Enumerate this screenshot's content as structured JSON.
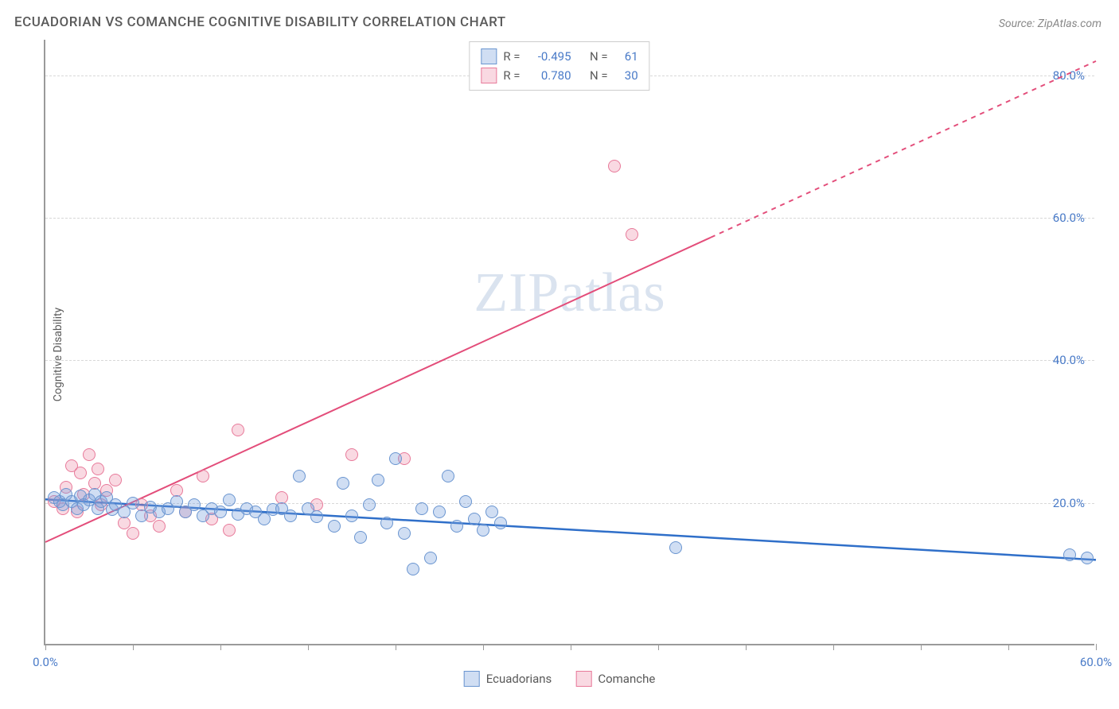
{
  "title": "ECUADORIAN VS COMANCHE COGNITIVE DISABILITY CORRELATION CHART",
  "source": "Source: ZipAtlas.com",
  "y_axis_label": "Cognitive Disability",
  "watermark_a": "ZIP",
  "watermark_b": "atlas",
  "chart": {
    "type": "scatter",
    "xlim": [
      0,
      60
    ],
    "ylim": [
      0,
      85
    ],
    "ytick_values": [
      20,
      40,
      60,
      80
    ],
    "ytick_labels": [
      "20.0%",
      "40.0%",
      "60.0%",
      "80.0%"
    ],
    "xtick_values": [
      0,
      5,
      10,
      15,
      20,
      25,
      30,
      35,
      40,
      45,
      50,
      55,
      60
    ],
    "xtick_labels": {
      "0": "0.0%",
      "60": "60.0%"
    },
    "grid_color": "#d8d8d8",
    "axis_color": "#9a9a9a",
    "background_color": "#ffffff",
    "marker_radius": 8,
    "marker_stroke_width": 1.5,
    "series": [
      {
        "name": "Ecuadorians",
        "fill": "rgba(120,160,220,0.35)",
        "stroke": "#6a95d0",
        "r_value": "-0.495",
        "n_value": "61",
        "trend": {
          "x1": 0,
          "y1": 20.5,
          "x2": 60,
          "y2": 12.0,
          "color": "#2f6fc9",
          "width": 2.5,
          "dash": ""
        },
        "points": [
          [
            0.5,
            20.5
          ],
          [
            0.8,
            20.0
          ],
          [
            1.0,
            19.5
          ],
          [
            1.2,
            21.0
          ],
          [
            1.5,
            20.0
          ],
          [
            1.8,
            19.0
          ],
          [
            2.0,
            20.8
          ],
          [
            2.2,
            19.5
          ],
          [
            2.5,
            20.2
          ],
          [
            2.8,
            21.0
          ],
          [
            3.0,
            19.0
          ],
          [
            3.2,
            20.0
          ],
          [
            3.5,
            20.5
          ],
          [
            3.8,
            18.8
          ],
          [
            4.0,
            19.5
          ],
          [
            4.5,
            18.5
          ],
          [
            5.0,
            19.8
          ],
          [
            5.5,
            18.0
          ],
          [
            6.0,
            19.2
          ],
          [
            6.5,
            18.5
          ],
          [
            7.0,
            19.0
          ],
          [
            7.5,
            20.0
          ],
          [
            8.0,
            18.5
          ],
          [
            8.5,
            19.5
          ],
          [
            9.0,
            18.0
          ],
          [
            9.5,
            19.0
          ],
          [
            10.0,
            18.5
          ],
          [
            10.5,
            20.2
          ],
          [
            11.0,
            18.2
          ],
          [
            11.5,
            19.0
          ],
          [
            12.0,
            18.5
          ],
          [
            12.5,
            17.5
          ],
          [
            13.0,
            18.8
          ],
          [
            13.5,
            19.0
          ],
          [
            14.0,
            18.0
          ],
          [
            14.5,
            23.5
          ],
          [
            15.0,
            19.0
          ],
          [
            15.5,
            17.8
          ],
          [
            16.5,
            16.5
          ],
          [
            17.0,
            22.5
          ],
          [
            17.5,
            18.0
          ],
          [
            18.0,
            15.0
          ],
          [
            18.5,
            19.5
          ],
          [
            19.0,
            23.0
          ],
          [
            19.5,
            17.0
          ],
          [
            20.0,
            26.0
          ],
          [
            20.5,
            15.5
          ],
          [
            21.0,
            10.5
          ],
          [
            21.5,
            19.0
          ],
          [
            22.0,
            12.0
          ],
          [
            22.5,
            18.5
          ],
          [
            23.0,
            23.5
          ],
          [
            23.5,
            16.5
          ],
          [
            24.0,
            20.0
          ],
          [
            24.5,
            17.5
          ],
          [
            25.0,
            16.0
          ],
          [
            25.5,
            18.5
          ],
          [
            26.0,
            17.0
          ],
          [
            36.0,
            13.5
          ],
          [
            58.5,
            12.5
          ],
          [
            59.5,
            12.0
          ]
        ]
      },
      {
        "name": "Comanche",
        "fill": "rgba(235,130,160,0.30)",
        "stroke": "#e87a9a",
        "r_value": "0.780",
        "n_value": "30",
        "trend": {
          "x1": 0,
          "y1": 14.5,
          "x2": 60,
          "y2": 82.0,
          "color": "#e34d7a",
          "width": 2,
          "dash_split": 38
        },
        "points": [
          [
            0.5,
            20.0
          ],
          [
            1.0,
            19.0
          ],
          [
            1.2,
            22.0
          ],
          [
            1.5,
            25.0
          ],
          [
            1.8,
            18.5
          ],
          [
            2.0,
            24.0
          ],
          [
            2.2,
            21.0
          ],
          [
            2.5,
            26.5
          ],
          [
            2.8,
            22.5
          ],
          [
            3.0,
            24.5
          ],
          [
            3.2,
            19.5
          ],
          [
            3.5,
            21.5
          ],
          [
            4.0,
            23.0
          ],
          [
            4.5,
            17.0
          ],
          [
            5.0,
            15.5
          ],
          [
            5.5,
            19.5
          ],
          [
            6.0,
            18.0
          ],
          [
            6.5,
            16.5
          ],
          [
            7.5,
            21.5
          ],
          [
            8.0,
            18.5
          ],
          [
            9.0,
            23.5
          ],
          [
            9.5,
            17.5
          ],
          [
            10.5,
            16.0
          ],
          [
            11.0,
            30.0
          ],
          [
            13.5,
            20.5
          ],
          [
            15.5,
            19.5
          ],
          [
            17.5,
            26.5
          ],
          [
            20.5,
            26.0
          ],
          [
            32.5,
            67.0
          ],
          [
            33.5,
            57.5
          ]
        ]
      }
    ]
  },
  "legend_bottom": [
    {
      "label": "Ecuadorians",
      "fill": "rgba(120,160,220,0.35)",
      "stroke": "#6a95d0"
    },
    {
      "label": "Comanche",
      "fill": "rgba(235,130,160,0.30)",
      "stroke": "#e87a9a"
    }
  ],
  "legend_top_labels": {
    "r": "R =",
    "n": "N ="
  }
}
